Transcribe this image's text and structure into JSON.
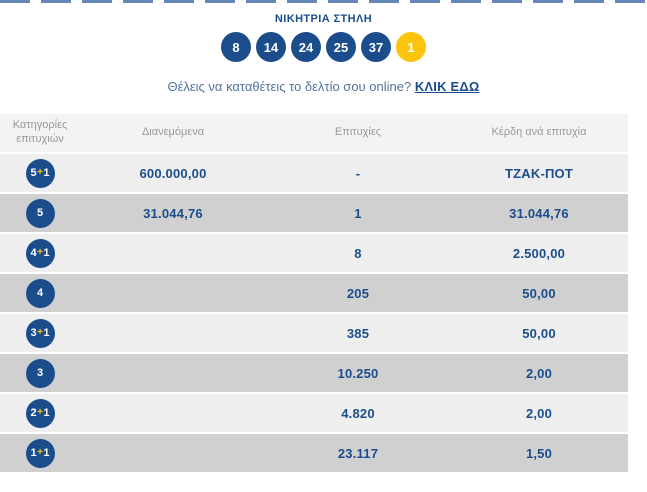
{
  "colors": {
    "dark_blue": "#1b4d8c",
    "yellow": "#fcc40f",
    "cta_text_blue": "#51759f",
    "header_gray": "#999999",
    "row_light": "#efeeee",
    "row_dark": "#d1d0d0",
    "header_bg": "#f4f3f3",
    "dash_blue": "#4a72ab"
  },
  "header": {
    "title": "ΝΙΚΗΤΡΙΑ ΣΤΗΛΗ",
    "numbers": [
      {
        "value": "8",
        "type": "main"
      },
      {
        "value": "14",
        "type": "main"
      },
      {
        "value": "24",
        "type": "main"
      },
      {
        "value": "25",
        "type": "main"
      },
      {
        "value": "37",
        "type": "main"
      },
      {
        "value": "1",
        "type": "joker"
      }
    ],
    "cta_text": "Θέλεις να καταθέτεις το δελτίο σου online? ",
    "cta_link_label": "ΚΛΙΚ ΕΔΩ"
  },
  "table": {
    "columns": {
      "category": "Κατηγορίες επιτυχιών",
      "distributed": "Διανεμόμενα",
      "winners": "Επιτυχίες",
      "prize": "Κέρδη ανά επιτυχία"
    },
    "rows": [
      {
        "category": "5+1",
        "distributed": "600.000,00",
        "winners": "-",
        "prize": "ΤΖΑΚ-ΠΟΤ"
      },
      {
        "category": "5",
        "distributed": "31.044,76",
        "winners": "1",
        "prize": "31.044,76"
      },
      {
        "category": "4+1",
        "distributed": "",
        "winners": "8",
        "prize": "2.500,00"
      },
      {
        "category": "4",
        "distributed": "",
        "winners": "205",
        "prize": "50,00"
      },
      {
        "category": "3+1",
        "distributed": "",
        "winners": "385",
        "prize": "50,00"
      },
      {
        "category": "3",
        "distributed": "",
        "winners": "10.250",
        "prize": "2,00"
      },
      {
        "category": "2+1",
        "distributed": "",
        "winners": "4.820",
        "prize": "2,00"
      },
      {
        "category": "1+1",
        "distributed": "",
        "winners": "23.117",
        "prize": "1,50"
      }
    ]
  }
}
